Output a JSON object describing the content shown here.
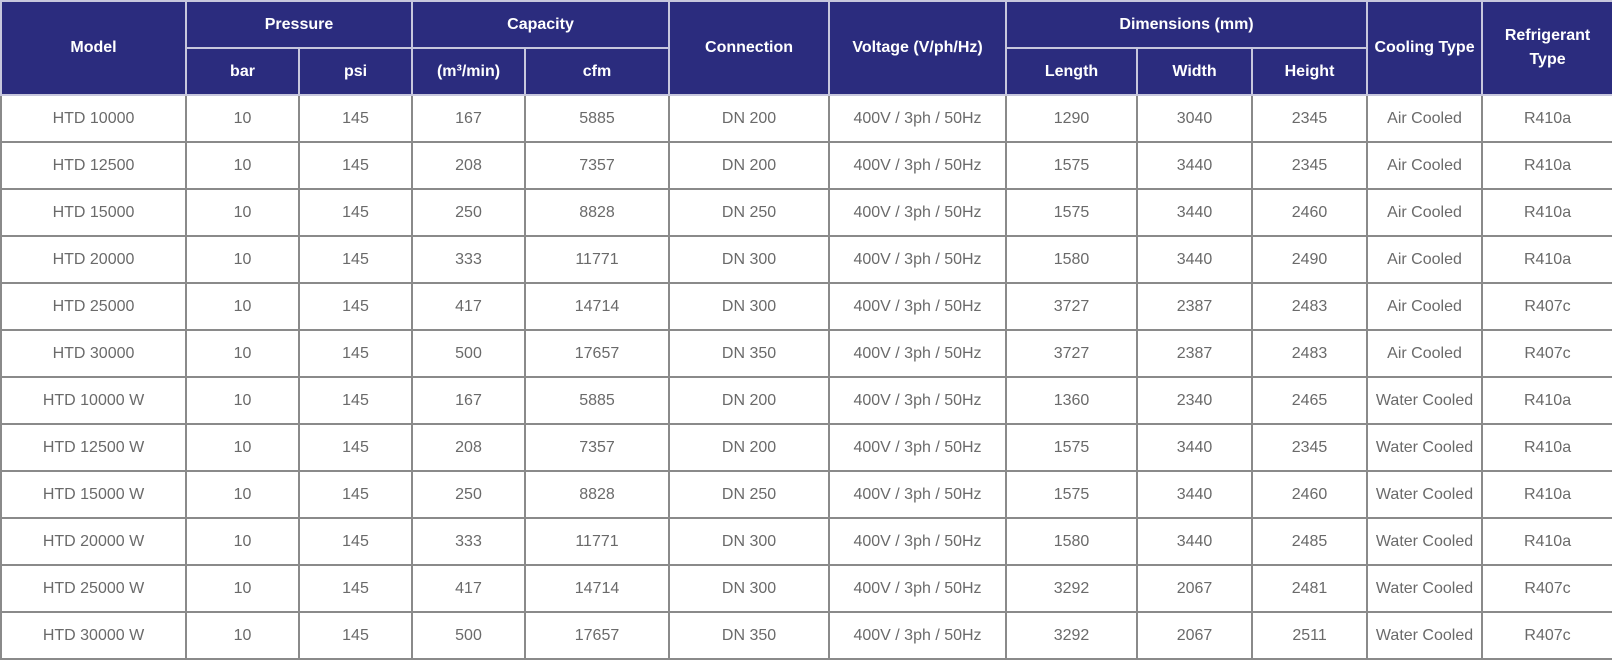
{
  "colors": {
    "header_bg": "#2b2c7e",
    "header_text": "#ffffff",
    "cell_text": "#6a6a6a",
    "border": "#8a8a8a"
  },
  "header": {
    "model": "Model",
    "pressure": "Pressure",
    "capacity": "Capacity",
    "connection": "Connection",
    "voltage": "Voltage (V/ph/Hz)",
    "dimensions": "Dimensions (mm)",
    "cooling_type": "Cooling Type",
    "refrigerant_type": "Refrigerant Type",
    "sub": {
      "bar": "bar",
      "psi": "psi",
      "m3min": "(m³/min)",
      "cfm": "cfm",
      "length": "Length",
      "width": "Width",
      "height": "Height"
    }
  },
  "rows": [
    [
      "HTD 10000",
      "10",
      "145",
      "167",
      "5885",
      "DN 200",
      "400V / 3ph / 50Hz",
      "1290",
      "3040",
      "2345",
      "Air Cooled",
      "R410a"
    ],
    [
      "HTD 12500",
      "10",
      "145",
      "208",
      "7357",
      "DN 200",
      "400V / 3ph / 50Hz",
      "1575",
      "3440",
      "2345",
      "Air Cooled",
      "R410a"
    ],
    [
      "HTD 15000",
      "10",
      "145",
      "250",
      "8828",
      "DN 250",
      "400V / 3ph / 50Hz",
      "1575",
      "3440",
      "2460",
      "Air Cooled",
      "R410a"
    ],
    [
      "HTD 20000",
      "10",
      "145",
      "333",
      "11771",
      "DN 300",
      "400V / 3ph / 50Hz",
      "1580",
      "3440",
      "2490",
      "Air Cooled",
      "R410a"
    ],
    [
      "HTD 25000",
      "10",
      "145",
      "417",
      "14714",
      "DN 300",
      "400V / 3ph / 50Hz",
      "3727",
      "2387",
      "2483",
      "Air Cooled",
      "R407c"
    ],
    [
      "HTD 30000",
      "10",
      "145",
      "500",
      "17657",
      "DN 350",
      "400V / 3ph / 50Hz",
      "3727",
      "2387",
      "2483",
      "Air Cooled",
      "R407c"
    ],
    [
      "HTD 10000 W",
      "10",
      "145",
      "167",
      "5885",
      "DN 200",
      "400V / 3ph / 50Hz",
      "1360",
      "2340",
      "2465",
      "Water Cooled",
      "R410a"
    ],
    [
      "HTD 12500 W",
      "10",
      "145",
      "208",
      "7357",
      "DN 200",
      "400V / 3ph / 50Hz",
      "1575",
      "3440",
      "2345",
      "Water Cooled",
      "R410a"
    ],
    [
      "HTD 15000 W",
      "10",
      "145",
      "250",
      "8828",
      "DN 250",
      "400V / 3ph / 50Hz",
      "1575",
      "3440",
      "2460",
      "Water Cooled",
      "R410a"
    ],
    [
      "HTD 20000 W",
      "10",
      "145",
      "333",
      "11771",
      "DN 300",
      "400V / 3ph / 50Hz",
      "1580",
      "3440",
      "2485",
      "Water Cooled",
      "R410a"
    ],
    [
      "HTD 25000 W",
      "10",
      "145",
      "417",
      "14714",
      "DN 300",
      "400V / 3ph / 50Hz",
      "3292",
      "2067",
      "2481",
      "Water Cooled",
      "R407c"
    ],
    [
      "HTD 30000 W",
      "10",
      "145",
      "500",
      "17657",
      "DN 350",
      "400V / 3ph / 50Hz",
      "3292",
      "2067",
      "2511",
      "Water Cooled",
      "R407c"
    ]
  ]
}
